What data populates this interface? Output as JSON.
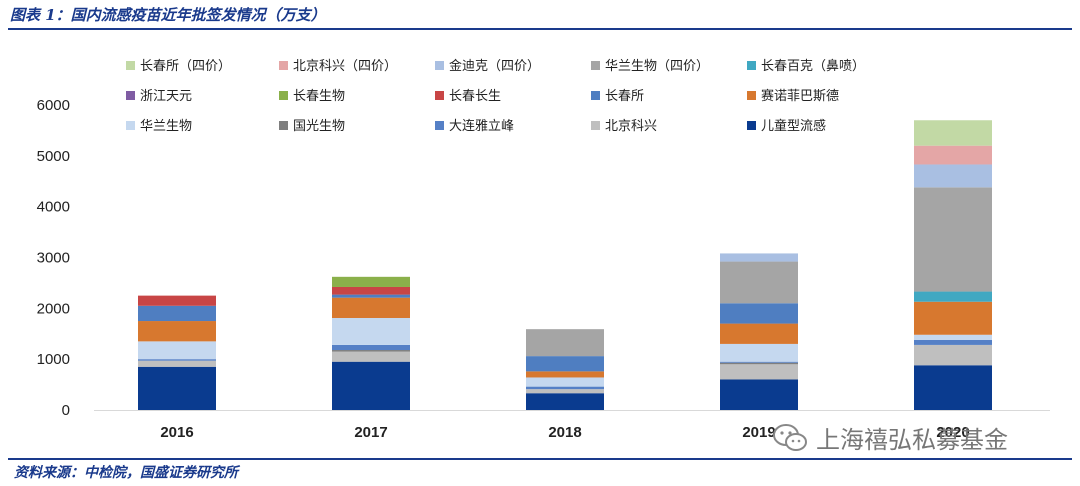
{
  "header": {
    "title": "图表 1：国内流感疫苗近年批签发情况（万支）"
  },
  "footer": {
    "source": "资料来源：中检院，国盛证券研究所"
  },
  "watermark": {
    "text": "上海禧弘私募基金"
  },
  "chart_data": {
    "type": "bar",
    "stacked": true,
    "categories": [
      "2016",
      "2017",
      "2018",
      "2019",
      "2020"
    ],
    "ylim": [
      0,
      6000
    ],
    "yticks": [
      0,
      1000,
      2000,
      3000,
      4000,
      5000,
      6000
    ],
    "grid": false,
    "legend_position": "top",
    "series": [
      {
        "name": "儿童型流感",
        "color": "#0a3b8f",
        "values": [
          850,
          950,
          330,
          600,
          880
        ]
      },
      {
        "name": "北京科兴",
        "color": "#bfbfbf",
        "values": [
          120,
          200,
          80,
          300,
          400
        ]
      },
      {
        "name": "国光生物",
        "color": "#7f7f7f",
        "values": [
          0,
          30,
          0,
          30,
          0
        ]
      },
      {
        "name": "大连雅立峰",
        "color": "#5580c6",
        "values": [
          30,
          100,
          50,
          20,
          100
        ]
      },
      {
        "name": "华兰生物",
        "color": "#c5d8ef",
        "values": [
          350,
          530,
          180,
          350,
          100
        ]
      },
      {
        "name": "赛诺菲巴斯德",
        "color": "#d7782f",
        "values": [
          400,
          400,
          120,
          400,
          650
        ]
      },
      {
        "name": "长春所",
        "color": "#4f7ec1",
        "values": [
          300,
          60,
          300,
          400,
          0
        ]
      },
      {
        "name": "长春长生",
        "color": "#c84545",
        "values": [
          200,
          150,
          0,
          0,
          0
        ]
      },
      {
        "name": "长春生物",
        "color": "#8ab04a",
        "values": [
          0,
          200,
          0,
          0,
          0
        ]
      },
      {
        "name": "浙江天元",
        "color": "#7f5ca3",
        "values": [
          0,
          0,
          0,
          0,
          0
        ]
      },
      {
        "name": "长春百克（鼻喷）",
        "color": "#40a8c2",
        "values": [
          0,
          0,
          0,
          0,
          200
        ]
      },
      {
        "name": "华兰生物（四价）",
        "color": "#a5a5a5",
        "values": [
          0,
          0,
          530,
          820,
          2050
        ]
      },
      {
        "name": "金迪克（四价）",
        "color": "#a9bfe2",
        "values": [
          0,
          0,
          0,
          160,
          450
        ]
      },
      {
        "name": "北京科兴（四价）",
        "color": "#e4a6a6",
        "values": [
          0,
          0,
          0,
          0,
          370
        ]
      },
      {
        "name": "长春所（四价）",
        "color": "#c2d9a5",
        "values": [
          0,
          0,
          0,
          0,
          500
        ]
      }
    ],
    "legend_order": [
      "长春所（四价）",
      "北京科兴（四价）",
      "金迪克（四价）",
      "华兰生物（四价）",
      "长春百克（鼻喷）",
      "浙江天元",
      "长春生物",
      "长春长生",
      "长春所",
      "赛诺菲巴斯德",
      "华兰生物",
      "国光生物",
      "大连雅立峰",
      "北京科兴",
      "儿童型流感"
    ]
  }
}
